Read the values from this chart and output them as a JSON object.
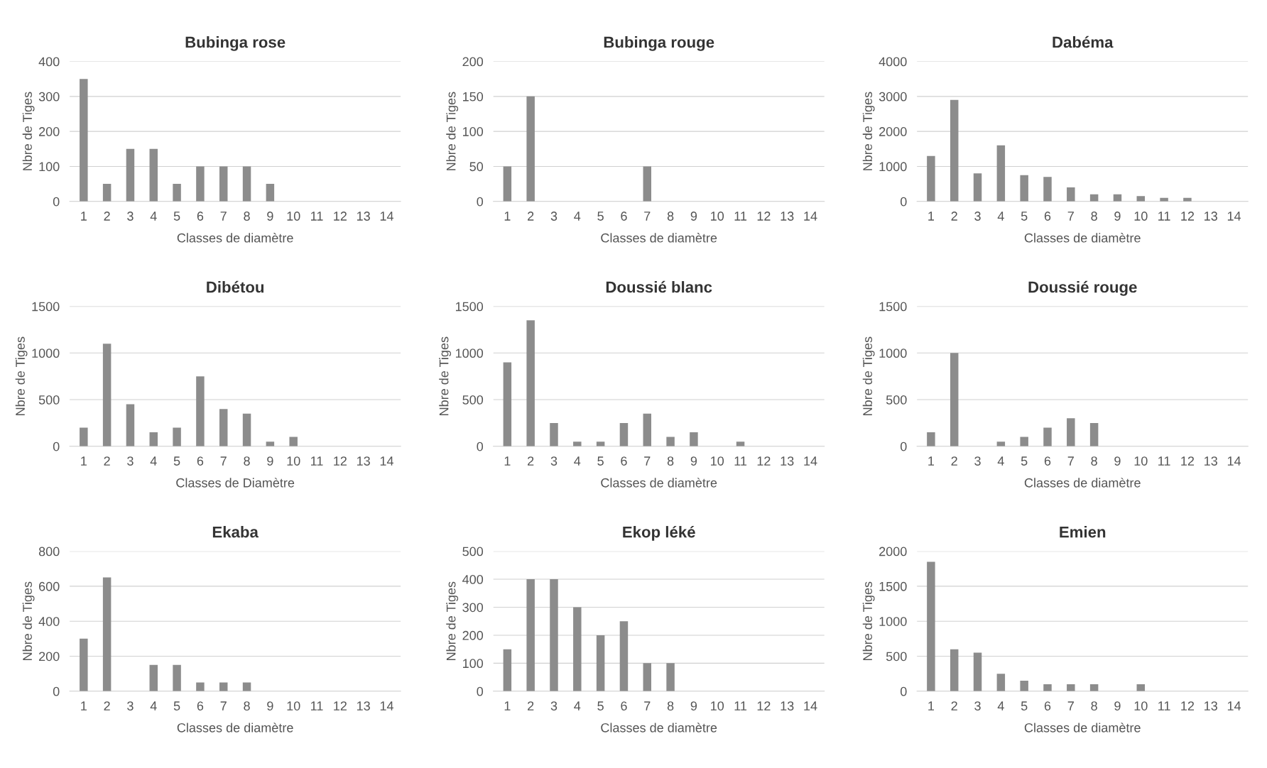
{
  "chart_data": [
    {
      "type": "bar",
      "title": "Bubinga rose",
      "xlabel": "Classes de diamètre",
      "ylabel": "Nbre de Tiges",
      "categories": [
        "1",
        "2",
        "3",
        "4",
        "5",
        "6",
        "7",
        "8",
        "9",
        "10",
        "11",
        "12",
        "13",
        "14"
      ],
      "values": [
        350,
        50,
        150,
        150,
        50,
        100,
        100,
        100,
        50,
        null,
        null,
        null,
        null,
        null
      ],
      "color": "#8c8c8c",
      "ylim": [
        0,
        400
      ],
      "yticks": [
        0,
        100,
        200,
        300,
        400
      ],
      "grid": "y"
    },
    {
      "type": "bar",
      "title": "Bubinga rouge",
      "xlabel": "Classes de diamètre",
      "ylabel": "Nbre de Tiges",
      "categories": [
        "1",
        "2",
        "3",
        "4",
        "5",
        "6",
        "7",
        "8",
        "9",
        "10",
        "11",
        "12",
        "13",
        "14"
      ],
      "values": [
        50,
        150,
        null,
        null,
        null,
        null,
        50,
        null,
        null,
        null,
        null,
        null,
        null,
        null
      ],
      "color": "#8c8c8c",
      "ylim": [
        0,
        200
      ],
      "yticks": [
        0,
        50,
        100,
        150,
        200
      ],
      "grid": "y"
    },
    {
      "type": "bar",
      "title": "Dabéma",
      "xlabel": "Classes de diamètre",
      "ylabel": "Nbre de Tiges",
      "categories": [
        "1",
        "2",
        "3",
        "4",
        "5",
        "6",
        "7",
        "8",
        "9",
        "10",
        "11",
        "12",
        "13",
        "14"
      ],
      "values": [
        1300,
        2900,
        800,
        1600,
        750,
        700,
        400,
        200,
        200,
        150,
        100,
        100,
        null,
        null
      ],
      "color": "#8c8c8c",
      "ylim": [
        0,
        4000
      ],
      "yticks": [
        0,
        1000,
        2000,
        3000,
        4000
      ],
      "grid": "y"
    },
    {
      "type": "bar",
      "title": "Dibétou",
      "xlabel": "Classes de Diamètre",
      "ylabel": "Nbre de Tiges",
      "categories": [
        "1",
        "2",
        "3",
        "4",
        "5",
        "6",
        "7",
        "8",
        "9",
        "10",
        "11",
        "12",
        "13",
        "14"
      ],
      "values": [
        200,
        1100,
        450,
        150,
        200,
        750,
        400,
        350,
        50,
        100,
        null,
        null,
        null,
        null
      ],
      "color": "#8c8c8c",
      "ylim": [
        0,
        1500
      ],
      "yticks": [
        0,
        500,
        1000,
        1500
      ],
      "grid": "y"
    },
    {
      "type": "bar",
      "title": "Doussié blanc",
      "xlabel": "Classes de diamètre",
      "ylabel": "Nbre de Tiges",
      "categories": [
        "1",
        "2",
        "3",
        "4",
        "5",
        "6",
        "7",
        "8",
        "9",
        "10",
        "11",
        "12",
        "13",
        "14"
      ],
      "values": [
        900,
        1350,
        250,
        50,
        50,
        250,
        350,
        100,
        150,
        null,
        50,
        null,
        null,
        null
      ],
      "color": "#8c8c8c",
      "ylim": [
        0,
        1500
      ],
      "yticks": [
        0,
        500,
        1000,
        1500
      ],
      "grid": "y"
    },
    {
      "type": "bar",
      "title": "Doussié rouge",
      "xlabel": "Classes de diamètre",
      "ylabel": "Nbre de Tiges",
      "categories": [
        "1",
        "2",
        "3",
        "4",
        "5",
        "6",
        "7",
        "8",
        "9",
        "10",
        "11",
        "12",
        "13",
        "14"
      ],
      "values": [
        150,
        1000,
        null,
        50,
        100,
        200,
        300,
        250,
        null,
        null,
        null,
        null,
        null,
        null
      ],
      "color": "#8c8c8c",
      "ylim": [
        0,
        1500
      ],
      "yticks": [
        0,
        500,
        1000,
        1500
      ],
      "grid": "y"
    },
    {
      "type": "bar",
      "title": "Ekaba",
      "xlabel": "Classes de diamètre",
      "ylabel": "Nbre de Tiges",
      "categories": [
        "1",
        "2",
        "3",
        "4",
        "5",
        "6",
        "7",
        "8",
        "9",
        "10",
        "11",
        "12",
        "13",
        "14"
      ],
      "values": [
        300,
        650,
        null,
        150,
        150,
        50,
        50,
        50,
        null,
        null,
        null,
        null,
        null,
        null
      ],
      "color": "#8c8c8c",
      "ylim": [
        0,
        800
      ],
      "yticks": [
        0,
        200,
        400,
        600,
        800
      ],
      "grid": "y"
    },
    {
      "type": "bar",
      "title": "Ekop léké",
      "xlabel": "Classes de diamètre",
      "ylabel": "Nbre de Tiges",
      "categories": [
        "1",
        "2",
        "3",
        "4",
        "5",
        "6",
        "7",
        "8",
        "9",
        "10",
        "11",
        "12",
        "13",
        "14"
      ],
      "values": [
        150,
        400,
        400,
        300,
        200,
        250,
        100,
        100,
        null,
        null,
        null,
        null,
        null,
        null
      ],
      "color": "#8c8c8c",
      "ylim": [
        0,
        500
      ],
      "yticks": [
        0,
        100,
        200,
        300,
        400,
        500
      ],
      "grid": "y"
    },
    {
      "type": "bar",
      "title": "Emien",
      "xlabel": "Classes de diamètre",
      "ylabel": "Nbre de Tiges",
      "categories": [
        "1",
        "2",
        "3",
        "4",
        "5",
        "6",
        "7",
        "8",
        "9",
        "10",
        "11",
        "12",
        "13",
        "14"
      ],
      "values": [
        1850,
        600,
        550,
        250,
        150,
        100,
        100,
        100,
        null,
        100,
        null,
        null,
        null,
        null
      ],
      "color": "#8c8c8c",
      "ylim": [
        0,
        2000
      ],
      "yticks": [
        0,
        500,
        1000,
        1500,
        2000
      ],
      "grid": "y"
    }
  ]
}
